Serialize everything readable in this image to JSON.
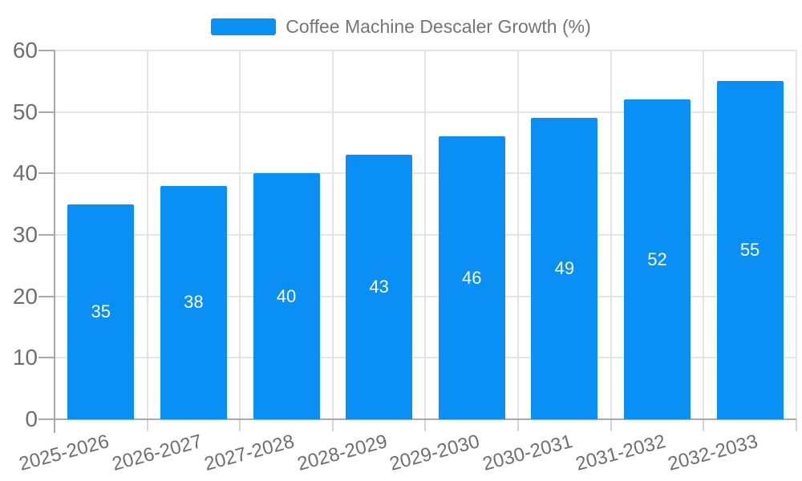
{
  "legend": {
    "label": "Coffee Machine Descaler Growth (%)"
  },
  "chart_data": {
    "type": "bar",
    "title": "Coffee Machine Descaler Growth (%)",
    "categories": [
      "2025-2026",
      "2026-2027",
      "2027-2028",
      "2028-2029",
      "2029-2030",
      "2030-2031",
      "2031-2032",
      "2032-2033"
    ],
    "values": [
      35,
      38,
      40,
      43,
      46,
      49,
      52,
      55
    ],
    "xlabel": "",
    "ylabel": "",
    "ylim": [
      0,
      60
    ],
    "yticks": [
      0,
      10,
      20,
      30,
      40,
      50,
      60
    ],
    "grid": true,
    "legend_position": "top-center",
    "value_labels": "inside-center",
    "x_tick_rotation": 15
  },
  "colors": {
    "bar": "#0a8ff5",
    "grid": "#e4e4e4",
    "axis": "#a9a9a9",
    "tick_minor": "#d4d4d4",
    "label_text": "#6f6f6f",
    "legend_text": "#757575",
    "value_text": "#ffffff"
  }
}
